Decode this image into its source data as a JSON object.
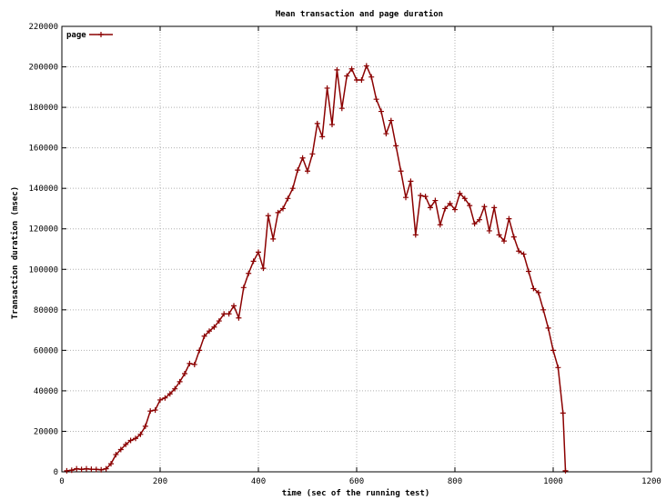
{
  "chart_data": {
    "type": "line",
    "title": "Mean transaction and page duration",
    "xlabel": "time (sec of the running test)",
    "ylabel": "Transaction duration (msec)",
    "xlim": [
      0,
      1200
    ],
    "ylim": [
      0,
      220000
    ],
    "xticks": [
      0,
      200,
      400,
      600,
      800,
      1000,
      1200
    ],
    "yticks": [
      0,
      20000,
      40000,
      60000,
      80000,
      100000,
      120000,
      140000,
      160000,
      180000,
      200000,
      220000
    ],
    "grid": true,
    "legend_position": "top-left",
    "series": [
      {
        "name": "page",
        "color": "#8b0000",
        "x": [
          10,
          20,
          30,
          40,
          50,
          60,
          70,
          80,
          90,
          100,
          110,
          120,
          130,
          140,
          150,
          160,
          170,
          180,
          190,
          200,
          210,
          220,
          230,
          240,
          250,
          260,
          270,
          280,
          290,
          300,
          310,
          320,
          330,
          340,
          350,
          360,
          370,
          380,
          390,
          400,
          410,
          420,
          430,
          440,
          450,
          460,
          470,
          480,
          490,
          500,
          510,
          520,
          530,
          540,
          550,
          560,
          570,
          580,
          590,
          600,
          610,
          620,
          630,
          640,
          650,
          660,
          670,
          680,
          690,
          700,
          710,
          720,
          730,
          740,
          750,
          760,
          770,
          780,
          790,
          800,
          810,
          820,
          830,
          840,
          850,
          860,
          870,
          880,
          890,
          900,
          910,
          920,
          930,
          940,
          950,
          960,
          970,
          980,
          990,
          1000,
          1010,
          1020,
          1025
        ],
        "y": [
          500,
          800,
          1500,
          1200,
          1500,
          1300,
          1200,
          1000,
          1500,
          4000,
          8500,
          11000,
          13500,
          15500,
          16500,
          18500,
          22500,
          30000,
          30500,
          35500,
          36500,
          38500,
          41000,
          44500,
          48500,
          53500,
          53000,
          60000,
          67000,
          69500,
          71500,
          74500,
          78000,
          78000,
          82000,
          76000,
          91000,
          98000,
          104000,
          108500,
          100500,
          126500,
          115000,
          128000,
          130000,
          135000,
          140000,
          149000,
          155000,
          148500,
          157000,
          172000,
          165500,
          189500,
          171500,
          198500,
          179500,
          195500,
          199000,
          193500,
          193500,
          200500,
          195000,
          184000,
          178000,
          167000,
          173500,
          161000,
          148500,
          135500,
          143500,
          117000,
          136500,
          136000,
          130500,
          134000,
          122000,
          130000,
          132500,
          129500,
          137500,
          135000,
          131500,
          122500,
          124500,
          131000,
          119000,
          130500,
          117000,
          114000,
          125000,
          116000,
          109000,
          107500,
          99000,
          90500,
          88500,
          80000,
          71000,
          60000,
          51500,
          29000,
          500
        ]
      }
    ]
  }
}
